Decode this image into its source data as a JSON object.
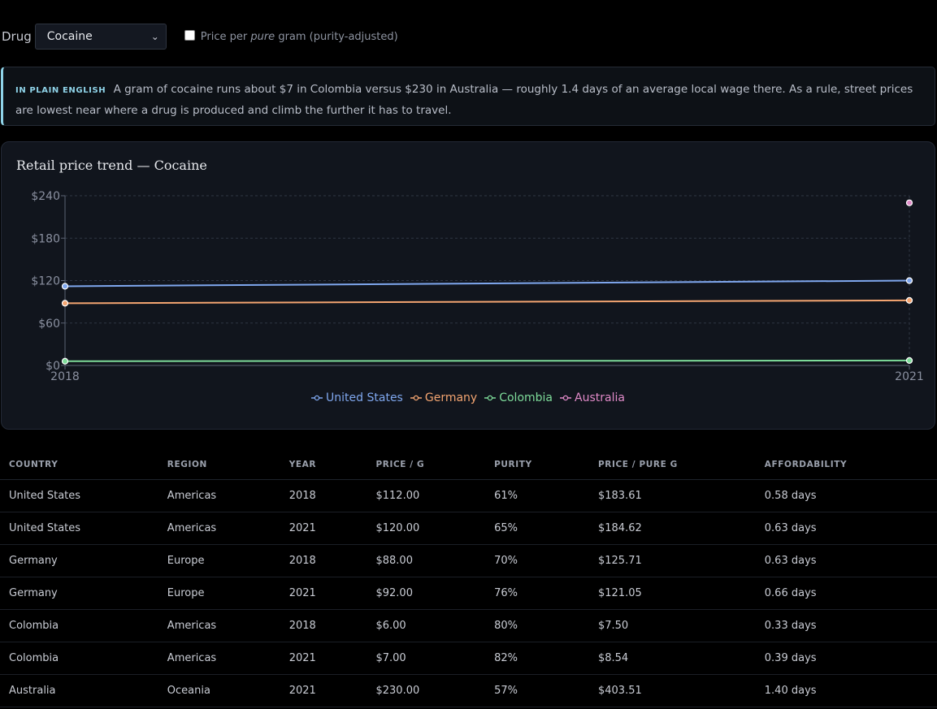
{
  "controls": {
    "drug_label": "Drug",
    "drug_selected": "Cocaine",
    "purity_checkbox": {
      "checked": false,
      "label_before": "Price per",
      "label_em": "pure",
      "label_after": "gram (purity-adjusted)"
    }
  },
  "plain_english": {
    "tag": "IN PLAIN ENGLISH",
    "text": "A gram of cocaine runs about $7 in Colombia versus $230 in Australia — roughly 1.4 days of an average local wage there. As a rule, street prices are lowest near where a drug is produced and climb the further it has to travel."
  },
  "chart_data": {
    "type": "line",
    "title": "Retail price trend — Cocaine",
    "x": [
      2018,
      2021
    ],
    "x_ticks": [
      "2018",
      "2021"
    ],
    "y_ticks": [
      "$0",
      "$60",
      "$120",
      "$180",
      "$240"
    ],
    "ylim": [
      0,
      240
    ],
    "grid": true,
    "legend_position": "bottom-center",
    "series": [
      {
        "name": "United States",
        "color": "#7fa7ee",
        "values": [
          112,
          120
        ]
      },
      {
        "name": "Germany",
        "color": "#f4a571",
        "values": [
          88,
          92
        ]
      },
      {
        "name": "Colombia",
        "color": "#7edc9a",
        "values": [
          6,
          7
        ]
      },
      {
        "name": "Australia",
        "color": "#e08ac8",
        "values": [
          null,
          230
        ]
      }
    ]
  },
  "table": {
    "headers": [
      "COUNTRY",
      "REGION",
      "YEAR",
      "PRICE / G",
      "PURITY",
      "PRICE / PURE G",
      "AFFORDABILITY"
    ],
    "rows": [
      [
        "United States",
        "Americas",
        "2018",
        "$112.00",
        "61%",
        "$183.61",
        "0.58 days"
      ],
      [
        "United States",
        "Americas",
        "2021",
        "$120.00",
        "65%",
        "$184.62",
        "0.63 days"
      ],
      [
        "Germany",
        "Europe",
        "2018",
        "$88.00",
        "70%",
        "$125.71",
        "0.63 days"
      ],
      [
        "Germany",
        "Europe",
        "2021",
        "$92.00",
        "76%",
        "$121.05",
        "0.66 days"
      ],
      [
        "Colombia",
        "Americas",
        "2018",
        "$6.00",
        "80%",
        "$7.50",
        "0.33 days"
      ],
      [
        "Colombia",
        "Americas",
        "2021",
        "$7.00",
        "82%",
        "$8.54",
        "0.39 days"
      ],
      [
        "Australia",
        "Oceania",
        "2021",
        "$230.00",
        "57%",
        "$403.51",
        "1.40 days"
      ]
    ]
  }
}
